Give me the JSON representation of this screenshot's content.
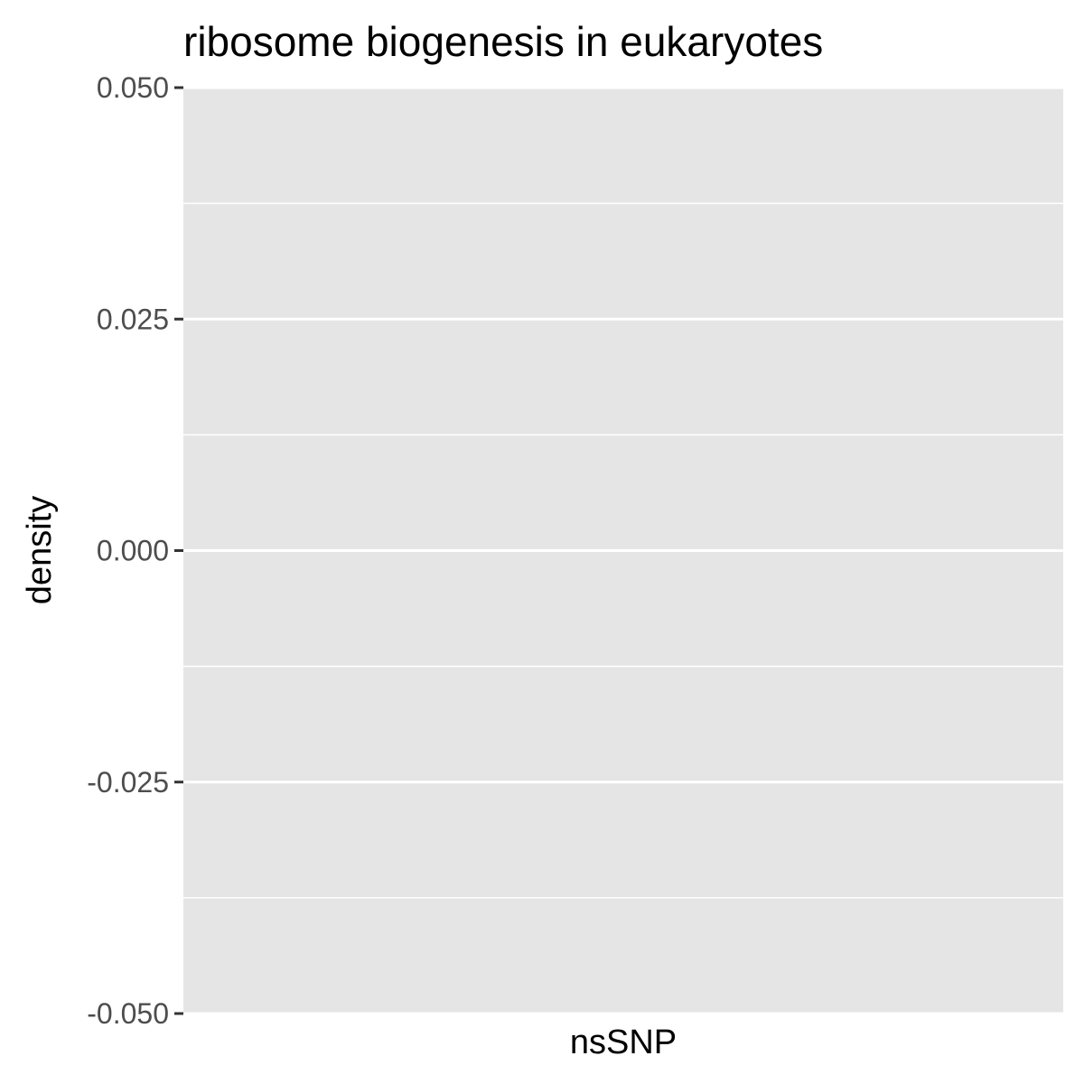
{
  "chart_data": {
    "type": "density",
    "title": "ribosome biogenesis in eukaryotes",
    "xlabel": "nsSNP",
    "ylabel": "density",
    "ylim": [
      -0.05,
      0.05
    ],
    "yticks": [
      -0.05,
      -0.025,
      0.0,
      0.025,
      0.05
    ],
    "ytick_labels": [
      "-0.050",
      "-0.025",
      "0.000",
      "0.025",
      "0.050"
    ],
    "x": [],
    "series": [],
    "grid": true,
    "panel_background": "#e5e5e5",
    "grid_color": "#ffffff"
  }
}
